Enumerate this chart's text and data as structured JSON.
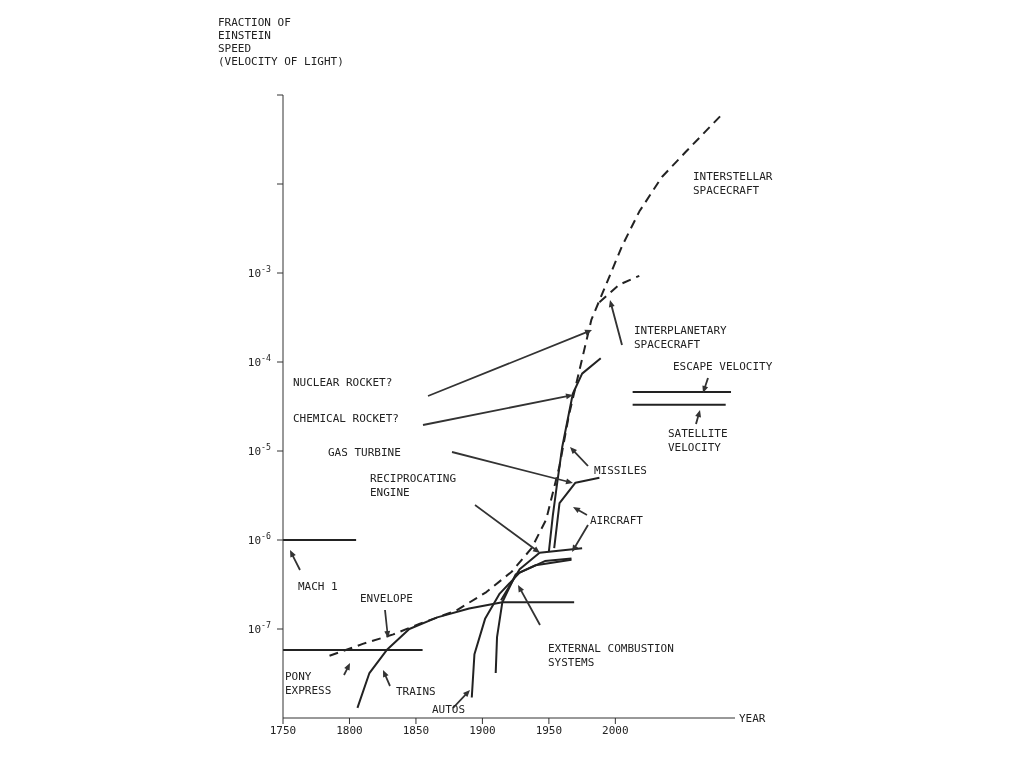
{
  "chart_data": {
    "type": "line",
    "ylabel": "FRACTION OF\nEINSTEIN\nSPEED\n(VELOCITY OF LIGHT)",
    "xlabel": "YEAR",
    "log": true,
    "xlim": [
      1750,
      2090
    ],
    "xticks": [
      1750,
      1800,
      1850,
      1900,
      1950,
      2000
    ],
    "ylim": [
      1e-08,
      0.1
    ],
    "yticks": [
      {
        "value": 1e-07,
        "label": "10$^{-7}$"
      },
      {
        "value": 1e-06,
        "label": "10$^{-6}$"
      },
      {
        "value": 1e-05,
        "label": "10$^{-5}$"
      },
      {
        "value": 0.0001,
        "label": "10$^{-4}$"
      },
      {
        "value": 0.001,
        "label": "10$^{-3}$"
      },
      {
        "value": 0.01,
        "label": null
      },
      {
        "value": 0.1,
        "label": null
      }
    ],
    "series": [
      {
        "color": "#222222",
        "x": [
          1750,
          1855
        ],
        "values": [
          5.8e-08,
          5.8e-08
        ]
      },
      {
        "color": "#222222",
        "x": [
          1750,
          1805
        ],
        "values": [
          1e-06,
          1e-06
        ]
      },
      {
        "color": "#222222",
        "x": [
          1806,
          1815,
          1828,
          1845,
          1866,
          1890,
          1915,
          1940,
          1969
        ],
        "values": [
          1.3e-08,
          3.2e-08,
          5.8e-08,
          1e-07,
          1.35e-07,
          1.7e-07,
          2e-07,
          2e-07,
          2e-07
        ]
      },
      {
        "color": "#222222",
        "x": [
          1892,
          1894,
          1902,
          1913,
          1928,
          1947,
          1967
        ],
        "values": [
          1.7e-08,
          5.2e-08,
          1.3e-07,
          2.5e-07,
          4.3e-07,
          5.8e-07,
          6.2e-07
        ]
      },
      {
        "color": "#222222",
        "x": [
          1910,
          1911,
          1915,
          1925,
          1940,
          1967
        ],
        "values": [
          3.2e-08,
          8.1e-08,
          2e-07,
          4.1e-07,
          5.2e-07,
          6e-07
        ]
      },
      {
        "color": "#222222",
        "x": [
          1914,
          1928,
          1943,
          1975
        ],
        "values": [
          2.1e-07,
          4.7e-07,
          7.2e-07,
          8.1e-07
        ]
      },
      {
        "color": "#222222",
        "x": [
          1954,
          1958,
          1970,
          1988
        ],
        "values": [
          8.1e-07,
          2.6e-06,
          4.4e-06,
          5e-06
        ]
      },
      {
        "color": "#222222",
        "x": [
          1950,
          1953,
          1956,
          1960,
          1968,
          1975,
          1989
        ],
        "values": [
          7.4e-07,
          1.9e-06,
          4.1e-06,
          1.1e-05,
          4.4e-05,
          7.4e-05,
          0.00011
        ]
      },
      {
        "color": "#222222",
        "line_style": "dashed",
        "x": [
          1785,
          1810,
          1833,
          1853,
          1880,
          1903,
          1922,
          1937,
          1948,
          1958,
          1965,
          1973,
          1982,
          1993,
          2005,
          2018,
          2035,
          2053,
          2079
        ],
        "values": [
          5e-08,
          6.8e-08,
          8.7e-08,
          1.15e-07,
          1.6e-07,
          2.6e-07,
          4.4e-07,
          8.1e-07,
          1.7e-06,
          6.8e-06,
          2.5e-05,
          8.1e-05,
          0.0003,
          0.00074,
          0.002,
          0.0049,
          0.012,
          0.023,
          0.058
        ]
      },
      {
        "color": "#222222",
        "line_style": "dashed",
        "x": [
          1988,
          2003,
          2018
        ],
        "values": [
          0.00047,
          0.00074,
          0.00093
        ]
      },
      {
        "color": "#222222",
        "x": [
          2013,
          2087
        ],
        "values": [
          4.6e-05,
          4.6e-05
        ]
      },
      {
        "color": "#222222",
        "x": [
          2013,
          2083
        ],
        "values": [
          3.3e-05,
          3.3e-05
        ]
      }
    ],
    "annotations": [
      "INTERSTELLAR\nSPACECRAFT",
      "NUCLEAR ROCKET?",
      "CHEMICAL ROCKET?",
      "GAS TURBINE",
      "RECIPROCATING\nENGINE",
      "MISSILES",
      "AIRCRAFT",
      "INTERPLANETARY\nSPACECRAFT",
      "ESCAPE VELOCITY",
      "SATELLITE\nVELOCITY",
      "MACH 1",
      "ENVELOPE",
      "EXTERNAL COMBUSTION\nSYSTEMS",
      "PONY\nEXPRESS",
      "TRAINS",
      "AUTOS"
    ]
  }
}
